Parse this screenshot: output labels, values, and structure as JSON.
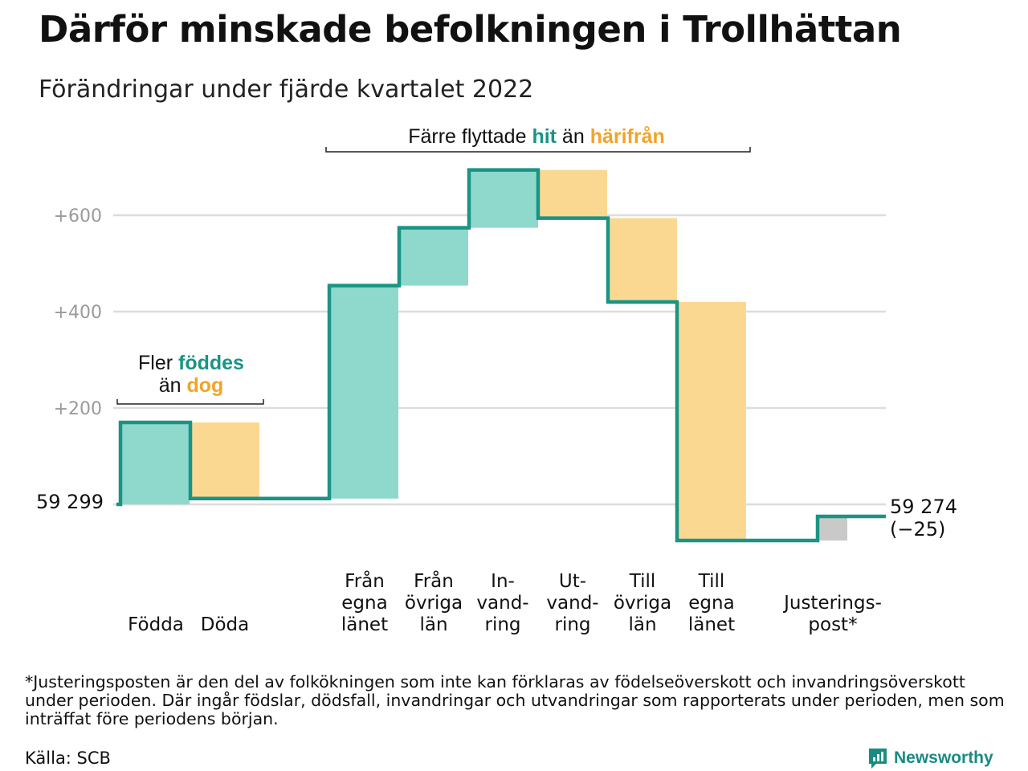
{
  "title": "Därför minskade befolkningen i Trollhättan",
  "subtitle": "Förändringar under fjärde kvartalet 2022",
  "colors": {
    "increase": "#8ed8cc",
    "decrease": "#fbd892",
    "adjustment": "#c9c9c9",
    "line": "#1a9484",
    "grid": "#dddddd",
    "tick_text": "#9a9a9a",
    "accent_teal": "#1a9484",
    "accent_orange": "#f1a428"
  },
  "chart_data": {
    "type": "waterfall",
    "start_label": "59 299",
    "end_label": "59 274",
    "end_change_label": "(−25)",
    "yticks": [
      {
        "value": 200,
        "label": "+200"
      },
      {
        "value": 400,
        "label": "+400"
      },
      {
        "value": 600,
        "label": "+600"
      }
    ],
    "ylim": [
      -100,
      780
    ],
    "steps": [
      {
        "key": "fodda",
        "label": [
          "Födda"
        ],
        "change": 170,
        "kind": "increase"
      },
      {
        "key": "doda",
        "label": [
          "Döda"
        ],
        "change": -158,
        "kind": "decrease"
      },
      {
        "key": "fran-egna-lanet",
        "label": [
          "Från",
          "egna",
          "länet"
        ],
        "change": 442,
        "kind": "increase"
      },
      {
        "key": "fran-ovriga-lan",
        "label": [
          "Från",
          "övriga",
          "län"
        ],
        "change": 120,
        "kind": "increase"
      },
      {
        "key": "invandring",
        "label": [
          "In-",
          "vand-",
          "ring"
        ],
        "change": 120,
        "kind": "increase"
      },
      {
        "key": "utvandring",
        "label": [
          "Ut-",
          "vand-",
          "ring"
        ],
        "change": -100,
        "kind": "decrease"
      },
      {
        "key": "till-ovriga-lan",
        "label": [
          "Till",
          "övriga",
          "län"
        ],
        "change": -174,
        "kind": "decrease"
      },
      {
        "key": "till-egna-lanet",
        "label": [
          "Till",
          "egna",
          "länet"
        ],
        "change": -495,
        "kind": "decrease"
      },
      {
        "key": "justeringspost",
        "label": [
          "Justerings-",
          "post*"
        ],
        "change": 50,
        "kind": "adjustment"
      }
    ],
    "annotations": {
      "births": {
        "line1": "Fler",
        "hi1": "föddes",
        "line2": "än",
        "hi2": "dog"
      },
      "moves": {
        "pre": "Färre flyttade",
        "hi1": "hit",
        "mid": "än",
        "hi2": "härifrån"
      }
    }
  },
  "footnote": "*Justeringsposten är den del av folkökningen som inte kan förklaras av födelseöverskott och invandringsöverskott under perioden. Där ingår födslar, dödsfall, invandringar och utvandringar som rapporterats under perioden, men som inträffat före periodens början.",
  "source": "Källa: SCB",
  "brand": {
    "name": "Newsworthy",
    "icon": "newsworthy-logo-icon"
  }
}
